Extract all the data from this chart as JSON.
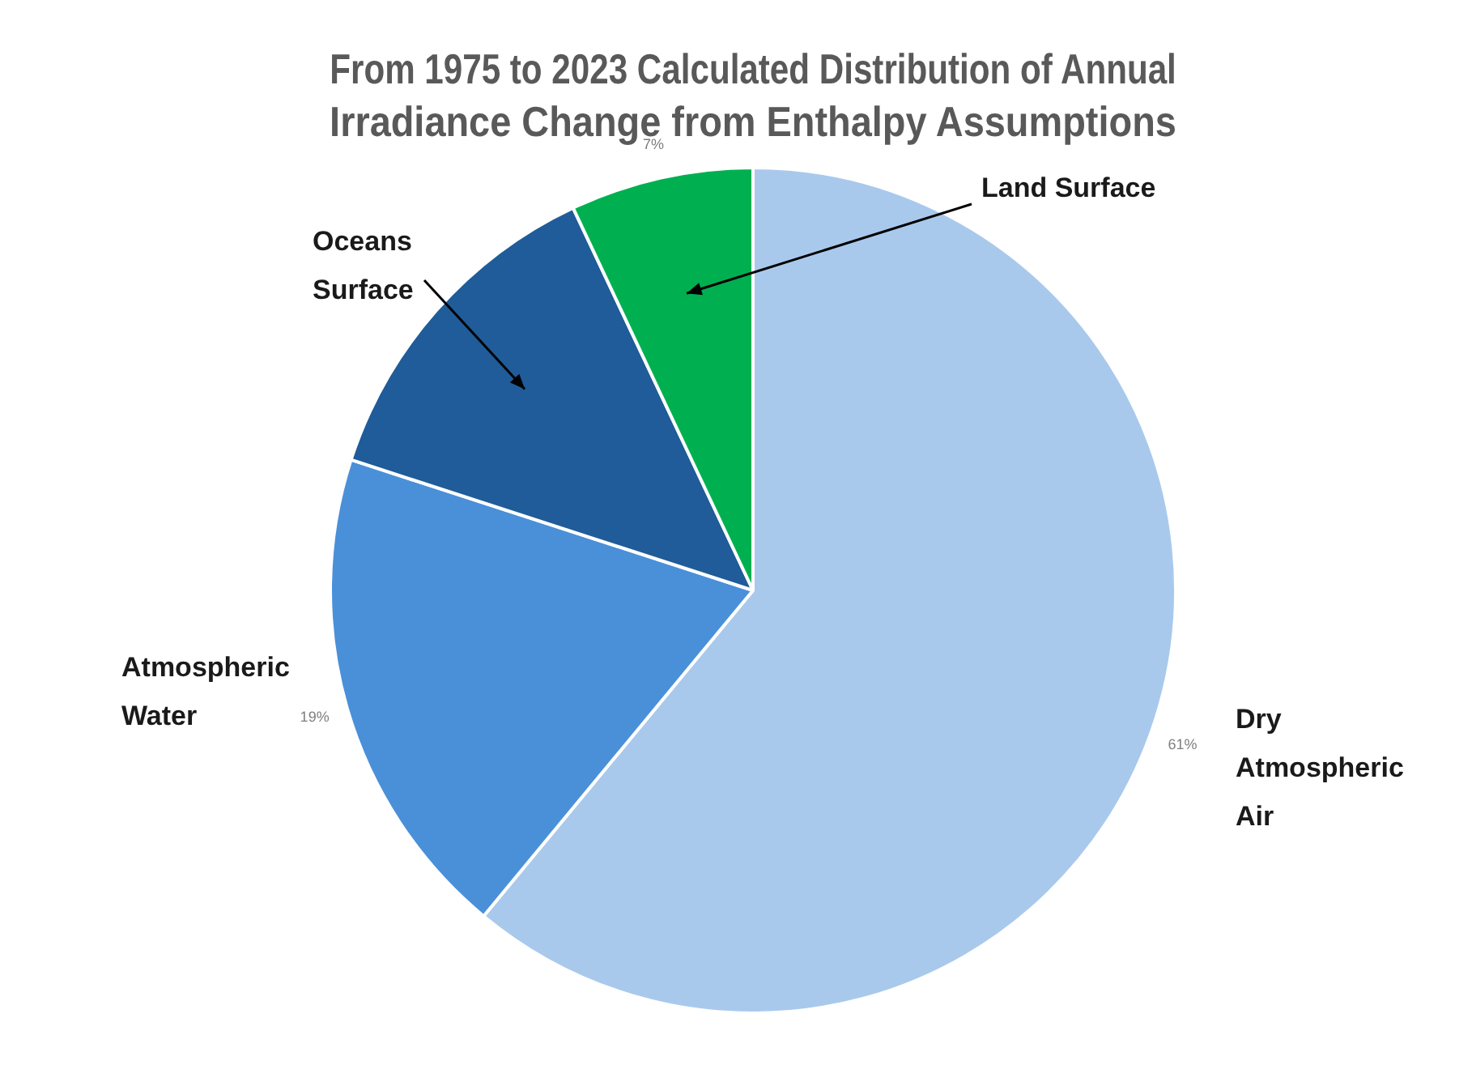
{
  "chart_data": {
    "type": "pie",
    "title": "From 1975 to 2023 Calculated Distribution of Annual Irradiance Change from Enthalpy Assumptions",
    "categories": [
      "Dry Atmospheric Air",
      "Atmospheric Water",
      "Oceans Surface",
      "Land Surface"
    ],
    "values": [
      61,
      19,
      13,
      7
    ],
    "value_labels": [
      "61%",
      "19%",
      null,
      "7%"
    ],
    "colors": [
      "#a9c9ec",
      "#4a90d9",
      "#1f5c99",
      "#00b050"
    ],
    "legend": false
  }
}
